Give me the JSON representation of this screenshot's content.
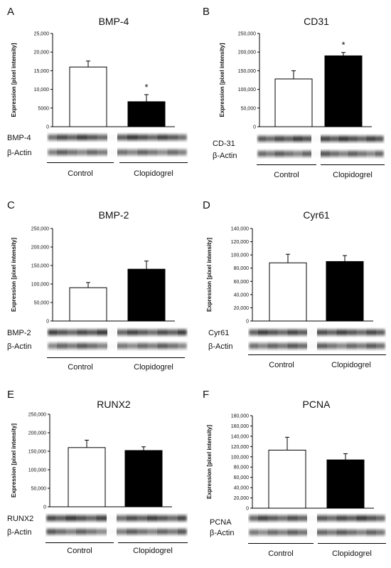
{
  "panels": [
    {
      "letter": "A",
      "title": "BMP-4",
      "blot_label": "BMP-4",
      "actin_label": "β-Actin",
      "groups": [
        "Control",
        "Clopidogrel"
      ],
      "chart_data": {
        "type": "bar",
        "categories": [
          "Control",
          "Clopidogrel"
        ],
        "values": [
          16000,
          6700
        ],
        "errors": [
          1600,
          1900
        ],
        "significance": [
          "",
          "*"
        ],
        "ylabel": "Expression [pixel intensity]",
        "yticks": [
          "0",
          "5000",
          "10,000",
          "15,000",
          "20,000",
          "25,000"
        ],
        "ylim": [
          0,
          25000
        ],
        "bar_colors": [
          "#ffffff",
          "#000000"
        ]
      }
    },
    {
      "letter": "B",
      "title": "CD31",
      "blot_label": "CD-31",
      "actin_label": "β-Actin",
      "groups": [
        "Control",
        "Clopidogrel"
      ],
      "chart_data": {
        "type": "bar",
        "categories": [
          "Control",
          "Clopidogrel"
        ],
        "values": [
          128000,
          190000
        ],
        "errors": [
          22000,
          9000
        ],
        "significance": [
          "",
          "*"
        ],
        "ylabel": "Expression [pixel intensity]",
        "yticks": [
          "0",
          "50,000",
          "100,000",
          "150,000",
          "200,000",
          "250,000"
        ],
        "ylim": [
          0,
          250000
        ],
        "bar_colors": [
          "#ffffff",
          "#000000"
        ]
      }
    },
    {
      "letter": "C",
      "title": "BMP-2",
      "blot_label": "BMP-2",
      "actin_label": "β-Actin",
      "groups": [
        "Control",
        "Clopidogrel"
      ],
      "chart_data": {
        "type": "bar",
        "categories": [
          "Control",
          "Clopidogrel"
        ],
        "values": [
          90000,
          140000
        ],
        "errors": [
          14000,
          22000
        ],
        "significance": [
          "",
          ""
        ],
        "ylabel": "Expression [pixel intensity]",
        "yticks": [
          "0",
          "50,000",
          "100,000",
          "150,000",
          "200,000",
          "250,000"
        ],
        "ylim": [
          0,
          250000
        ],
        "bar_colors": [
          "#ffffff",
          "#000000"
        ]
      }
    },
    {
      "letter": "D",
      "title": "Cyr61",
      "blot_label": "Cyr61",
      "actin_label": "β-Actin",
      "groups": [
        "Control",
        "Clopidogrel"
      ],
      "chart_data": {
        "type": "bar",
        "categories": [
          "Control",
          "Clopidogrel"
        ],
        "values": [
          88000,
          90000
        ],
        "errors": [
          13000,
          9000
        ],
        "significance": [
          "",
          ""
        ],
        "ylabel": "Expression [pixel intensity]",
        "yticks": [
          "0",
          "20,000",
          "40,000",
          "60,000",
          "80,000",
          "100,000",
          "120,000",
          "140,000"
        ],
        "ylim": [
          0,
          140000
        ],
        "bar_colors": [
          "#ffffff",
          "#000000"
        ]
      }
    },
    {
      "letter": "E",
      "title": "RUNX2",
      "blot_label": "RUNX2",
      "actin_label": "β-Actin",
      "groups": [
        "Control",
        "Clopidogrel"
      ],
      "chart_data": {
        "type": "bar",
        "categories": [
          "Control",
          "Clopidogrel"
        ],
        "values": [
          160000,
          152000
        ],
        "errors": [
          20000,
          10000
        ],
        "significance": [
          "",
          ""
        ],
        "ylabel": "Expression [pixel intensity]",
        "yticks": [
          "0",
          "50,000",
          "100,000",
          "150,000",
          "200,000",
          "250,000"
        ],
        "ylim": [
          0,
          250000
        ],
        "bar_colors": [
          "#ffffff",
          "#000000"
        ]
      }
    },
    {
      "letter": "F",
      "title": "PCNA",
      "blot_label": "PCNA",
      "actin_label": "β-Actin",
      "groups": [
        "Control",
        "Clopidogrel"
      ],
      "chart_data": {
        "type": "bar",
        "categories": [
          "Control",
          "Clopidogrel"
        ],
        "values": [
          113000,
          94000
        ],
        "errors": [
          25000,
          12000
        ],
        "significance": [
          "",
          ""
        ],
        "ylabel": "Expression [pixel intensity]",
        "yticks": [
          "0",
          "20,000",
          "40,000",
          "60,000",
          "80,000",
          "100,000",
          "120,000",
          "140,000",
          "160,000",
          "180,000"
        ],
        "ylim": [
          0,
          180000
        ],
        "bar_colors": [
          "#ffffff",
          "#000000"
        ]
      }
    }
  ]
}
